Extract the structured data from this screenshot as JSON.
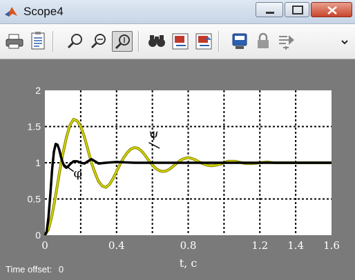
{
  "window": {
    "title": "Scope4"
  },
  "colors": {
    "background": "#7a7a7a",
    "axes_bg": "#ffffff",
    "grid": "#000000",
    "phi_line": "#000000",
    "psi_line": "#8c8c00",
    "psi_highlight": "#e6e600"
  },
  "toolbar": {
    "buttons": [
      {
        "name": "print-icon",
        "interactable": true
      },
      {
        "name": "parameters-icon",
        "interactable": true
      },
      {
        "name": "zoom-icon",
        "interactable": true
      },
      {
        "name": "zoom-x-icon",
        "interactable": true
      },
      {
        "name": "zoom-y-icon",
        "interactable": true,
        "pressed": true
      },
      {
        "name": "autoscale-icon",
        "interactable": true
      },
      {
        "name": "save-axes-icon",
        "interactable": true
      },
      {
        "name": "restore-axes-icon",
        "interactable": true
      },
      {
        "name": "floating-scope-icon",
        "interactable": true
      },
      {
        "name": "lock-axes-icon",
        "interactable": true
      },
      {
        "name": "signal-selection-icon",
        "interactable": true
      }
    ]
  },
  "status": {
    "time_offset_label": "Time offset:",
    "time_offset_value": "0"
  },
  "chart_data": {
    "type": "line",
    "xlim": [
      0,
      1.6
    ],
    "ylim": [
      0,
      2
    ],
    "x_ticks": [
      "0",
      "0.4",
      "0.8",
      "1.2",
      "1.4",
      "1.6"
    ],
    "x_tick_values": [
      0,
      0.4,
      0.8,
      1.2,
      1.4,
      1.6
    ],
    "y_ticks": [
      "0",
      "0.5",
      "1",
      "1.5",
      "2"
    ],
    "y_tick_values": [
      0,
      0.5,
      1,
      1.5,
      2
    ],
    "grid_x": [
      0.2,
      0.4,
      0.6,
      0.8,
      1.0,
      1.2,
      1.4
    ],
    "grid_y": [
      0.5,
      1.0,
      1.5
    ],
    "xlabel": "t, c",
    "grid": true,
    "series": [
      {
        "name": "φ",
        "x": [
          0,
          0.01,
          0.02,
          0.03,
          0.04,
          0.05,
          0.06,
          0.07,
          0.08,
          0.09,
          0.1,
          0.11,
          0.12,
          0.13,
          0.14,
          0.16,
          0.18,
          0.2,
          0.22,
          0.24,
          0.26,
          0.28,
          0.3,
          0.34,
          0.4,
          0.5,
          0.6,
          0.8,
          1.0,
          1.2,
          1.4,
          1.6
        ],
        "values": [
          0,
          0.05,
          0.25,
          0.55,
          0.9,
          1.15,
          1.26,
          1.25,
          1.18,
          1.08,
          1.0,
          0.95,
          0.93,
          0.95,
          0.98,
          1.02,
          1.02,
          1.0,
          0.99,
          1.02,
          1.05,
          1.02,
          0.99,
          1.0,
          1.01,
          1.0,
          1.0,
          1.0,
          1.0,
          1.0,
          1.0,
          1.0
        ]
      },
      {
        "name": "ψ",
        "x": [
          0,
          0.02,
          0.04,
          0.06,
          0.08,
          0.1,
          0.12,
          0.14,
          0.16,
          0.18,
          0.2,
          0.22,
          0.24,
          0.26,
          0.28,
          0.3,
          0.32,
          0.34,
          0.36,
          0.38,
          0.4,
          0.42,
          0.44,
          0.46,
          0.48,
          0.5,
          0.52,
          0.54,
          0.56,
          0.58,
          0.6,
          0.62,
          0.64,
          0.66,
          0.68,
          0.7,
          0.72,
          0.74,
          0.76,
          0.78,
          0.8,
          0.82,
          0.84,
          0.86,
          0.88,
          0.9,
          0.92,
          0.94,
          0.96,
          0.98,
          1.0,
          1.02,
          1.04,
          1.06,
          1.08,
          1.1,
          1.12,
          1.16,
          1.2,
          1.24,
          1.28,
          1.32,
          1.36,
          1.4,
          1.44,
          1.48,
          1.52,
          1.56,
          1.6
        ],
        "values": [
          0,
          0.08,
          0.28,
          0.55,
          0.85,
          1.12,
          1.35,
          1.52,
          1.6,
          1.58,
          1.5,
          1.36,
          1.18,
          1.0,
          0.86,
          0.74,
          0.68,
          0.66,
          0.7,
          0.78,
          0.88,
          0.98,
          1.07,
          1.14,
          1.19,
          1.21,
          1.2,
          1.16,
          1.1,
          1.03,
          0.97,
          0.92,
          0.89,
          0.88,
          0.89,
          0.92,
          0.96,
          1.0,
          1.04,
          1.06,
          1.07,
          1.06,
          1.04,
          1.01,
          0.99,
          0.97,
          0.96,
          0.96,
          0.97,
          0.98,
          1.0,
          1.02,
          1.02,
          1.02,
          1.01,
          1.0,
          0.99,
          0.99,
          1.0,
          1.01,
          1.0,
          1.0,
          1.0,
          1.0,
          1.0,
          1.0,
          1.0,
          1.0,
          1.0
        ]
      }
    ],
    "annotations": [
      {
        "text": "ψ",
        "x": 0.58,
        "y": 1.35
      },
      {
        "text": "φ",
        "x": 0.16,
        "y": 0.8
      }
    ]
  }
}
